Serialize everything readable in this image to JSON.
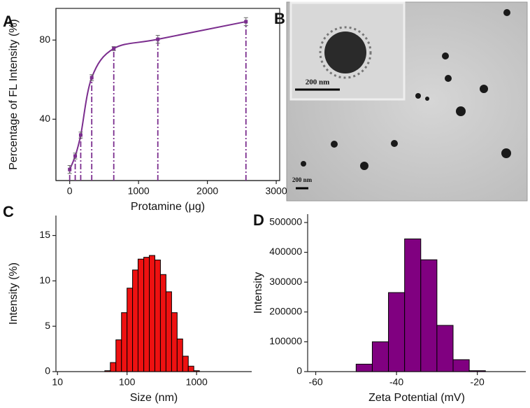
{
  "chart_data": [
    {
      "type": "scatter",
      "panel_label": "A",
      "x_label": "Protamine (μg)",
      "y_label": "Percentage of FL Intensity (%)",
      "x": [
        0,
        80,
        160,
        320,
        640,
        1280,
        2560
      ],
      "values": [
        14.6,
        21.4,
        32,
        61,
        75.7,
        80.4,
        89.3
      ],
      "errors": [
        2,
        1.5,
        1.5,
        1.5,
        1,
        2,
        2
      ],
      "color": "#7b2d8e",
      "xlim": [
        -200,
        3050
      ],
      "ylim": [
        9,
        96
      ],
      "xticks": [
        0,
        1000,
        2000,
        3000
      ],
      "yticks": [
        40,
        80
      ]
    },
    {
      "type": "histogram",
      "panel_label": "C",
      "x_label": "Size (nm)",
      "y_label": "Intensity (%)",
      "log_x": true,
      "bins": [
        47.9,
        57.5,
        69.2,
        83.2,
        100,
        120,
        144,
        174,
        209,
        251,
        302,
        363,
        437,
        525,
        631,
        759,
        912,
        1096
      ],
      "values": [
        0.1,
        1,
        3.5,
        6.5,
        9.2,
        11.2,
        12.4,
        12.6,
        12.8,
        12.3,
        10.7,
        8.8,
        6.5,
        3.6,
        1.7,
        0.6,
        0.1
      ],
      "color": "#ee1111",
      "xlim": [
        9.5,
        6200
      ],
      "ylim": [
        0,
        17.2
      ],
      "xticks": [
        10,
        100,
        1000
      ],
      "yticks": [
        0,
        5,
        10,
        15
      ]
    },
    {
      "type": "histogram",
      "panel_label": "D",
      "x_label": "Zeta Potential (mV)",
      "y_label": "Intensity",
      "bins": [
        -58,
        -54,
        -50,
        -46,
        -42,
        -38,
        -34,
        -30,
        -26,
        -22,
        -18
      ],
      "values": [
        0,
        0,
        25000,
        100000,
        265000,
        445000,
        375000,
        155000,
        40000,
        3000
      ],
      "color": "#800080",
      "xlim": [
        -62,
        -8
      ],
      "ylim": [
        0,
        528000
      ],
      "xticks": [
        -60,
        -40,
        -20
      ],
      "yticks": [
        0,
        100000,
        200000,
        300000,
        400000,
        500000
      ]
    }
  ],
  "image_panel": {
    "panel_label": "B",
    "scale_bar_labels": [
      "200 nm",
      "200 nm"
    ]
  }
}
